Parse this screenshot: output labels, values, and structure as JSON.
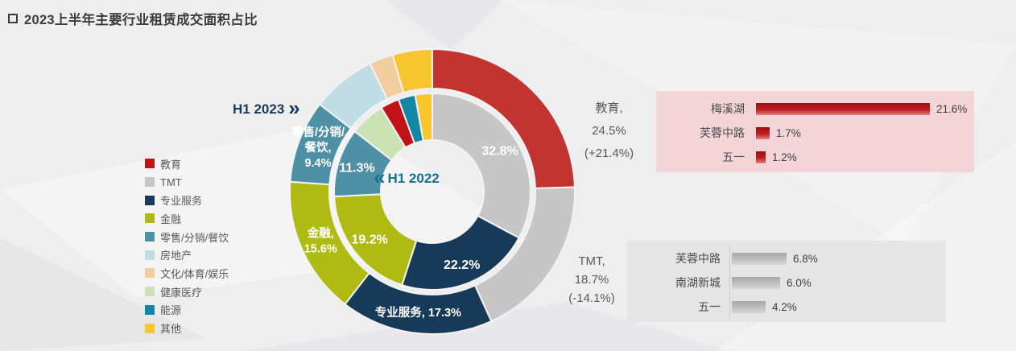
{
  "page": {
    "title": "2023上半年主要行业租赁成交面积占比"
  },
  "icons": {
    "title_square": "outlined-square",
    "chevron_right_double": "»",
    "chevron_left_double": "«"
  },
  "colors": {
    "h1_2023_tag": "#1B3A5E",
    "h1_2022_tag": "#19708C",
    "title_text": "#3C3C3B",
    "body_text": "#58595B",
    "background": "#EEEEEF"
  },
  "legend": {
    "items": [
      {
        "label": "教育",
        "color": "#C11218"
      },
      {
        "label": "TMT",
        "color": "#C6C6C7"
      },
      {
        "label": "专业服务",
        "color": "#173A59"
      },
      {
        "label": "金融",
        "color": "#AFBB13"
      },
      {
        "label": "零售/分销/餐饮",
        "color": "#4E90A5"
      },
      {
        "label": "房地产",
        "color": "#C0DDE5"
      },
      {
        "label": "文化/体育/娱乐",
        "color": "#F2CD9D"
      },
      {
        "label": "健康医疗",
        "color": "#CBE2B4"
      },
      {
        "label": "能源",
        "color": "#1385A5"
      },
      {
        "label": "其他",
        "color": "#F7C52D"
      }
    ]
  },
  "chart_data": [
    {
      "type": "pie",
      "variant": "two-ring-donut",
      "title": "2023上半年主要行业租赁成交面积占比",
      "unit": "%",
      "direction": "clockwise",
      "start_angle_deg": 0,
      "rings": [
        {
          "name": "H1 2023",
          "ring": "outer",
          "segments": [
            {
              "label": "教育",
              "value": 24.5,
              "color": "#C23430"
            },
            {
              "label": "TMT",
              "value": 18.7,
              "color": "#C6C6C7"
            },
            {
              "label": "专业服务",
              "value": 17.3,
              "color": "#173A59",
              "slice_label_lines": [
                "专业服务, 17.3%"
              ]
            },
            {
              "label": "金融",
              "value": 15.6,
              "color": "#AFBB13",
              "slice_label_lines": [
                "金融,",
                "15.6%"
              ]
            },
            {
              "label": "零售/分销/餐饮",
              "value": 9.4,
              "color": "#4E90A5",
              "slice_label_lines": [
                "零售/分销/",
                "餐饮,",
                "9.4%"
              ]
            },
            {
              "label": "房地产",
              "value": 7.3,
              "color": "#C0DDE5",
              "estimated": true
            },
            {
              "label": "文化/体育/娱乐",
              "value": 2.7,
              "color": "#F2CD9D",
              "estimated": true
            },
            {
              "label": "其他",
              "value": 4.5,
              "color": "#F7C52D",
              "estimated": true
            }
          ]
        },
        {
          "name": "H1 2022",
          "ring": "inner",
          "segments": [
            {
              "label": "TMT",
              "value": 32.8,
              "color": "#C6C6C7",
              "slice_label_lines": [
                "32.8%"
              ]
            },
            {
              "label": "专业服务",
              "value": 22.2,
              "color": "#173A59",
              "slice_label_lines": [
                "22.2%"
              ]
            },
            {
              "label": "金融",
              "value": 19.2,
              "color": "#AFBB13",
              "slice_label_lines": [
                "19.2%"
              ]
            },
            {
              "label": "零售/分销/餐饮",
              "value": 11.3,
              "color": "#4E90A5",
              "slice_label_lines": [
                "11.3%"
              ]
            },
            {
              "label": "健康医疗",
              "value": 5.8,
              "color": "#CBE2B4",
              "estimated": true
            },
            {
              "label": "教育",
              "value": 3.1,
              "color": "#C11218",
              "estimated": true
            },
            {
              "label": "能源",
              "value": 2.8,
              "color": "#1385A5",
              "estimated": true
            },
            {
              "label": "其他",
              "value": 2.8,
              "color": "#F7C52D",
              "estimated": true
            }
          ]
        }
      ],
      "annotations": [
        {
          "target": "教育",
          "lines": [
            "教育,",
            "24.5%",
            "(+21.4%)"
          ]
        },
        {
          "target": "TMT",
          "lines": [
            "TMT,",
            "18.7%",
            "(-14.1%)"
          ]
        }
      ]
    },
    {
      "type": "bar",
      "orientation": "horizontal",
      "position": "top-right",
      "panel_bg": "#F3D5D7",
      "bar_gradient": [
        "#9B0F13",
        "#C11B20",
        "#DD8680"
      ],
      "axis_color": "#E3D2D4",
      "categories": [
        "梅溪湖",
        "芙蓉中路",
        "五一"
      ],
      "values": [
        21.6,
        1.7,
        1.2
      ],
      "value_suffix": "%",
      "xlim": [
        0,
        24
      ]
    },
    {
      "type": "bar",
      "orientation": "horizontal",
      "position": "bottom-right",
      "panel_bg": "#E5E5E6",
      "bar_gradient": [
        "#A9A9A9",
        "#BFBFBF",
        "#D8D8D8"
      ],
      "axis_color": "#CBCBCC",
      "categories": [
        "芙蓉中路",
        "南湖新城",
        "五一"
      ],
      "values": [
        6.8,
        6.0,
        4.2
      ],
      "value_suffix": "%",
      "xlim": [
        0,
        24
      ]
    }
  ]
}
